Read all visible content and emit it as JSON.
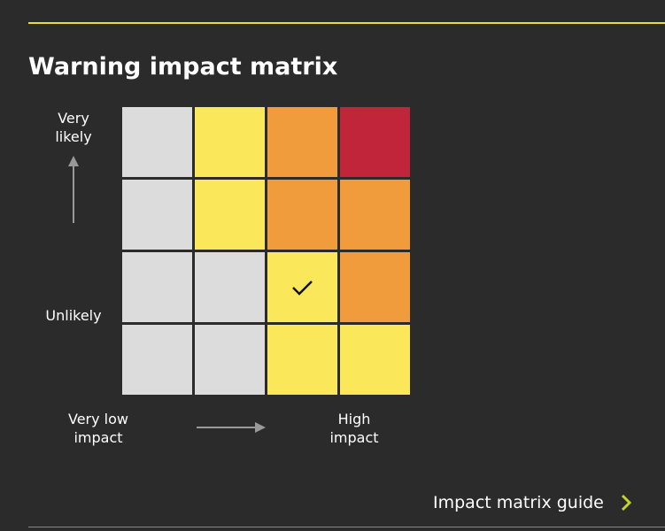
{
  "title": "Warning impact matrix",
  "likelihood_axis": {
    "top": "Very likely",
    "bottom": "Unlikely"
  },
  "impact_axis": {
    "left": "Very low impact",
    "right": "High impact"
  },
  "link": "Impact matrix guide"
}
